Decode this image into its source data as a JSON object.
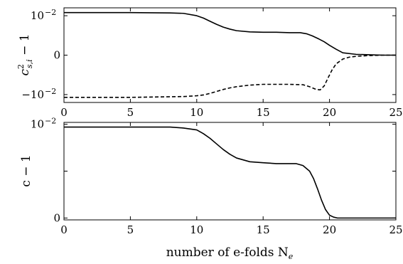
{
  "chart_data": [
    {
      "type": "line",
      "ylabel_parts": {
        "base": "c",
        "sup": "2",
        "sub": "s,i",
        "rest": " − 1"
      },
      "xlim": [
        0,
        25
      ],
      "ylim": [
        -0.012,
        0.012
      ],
      "xticks": [
        0,
        5,
        10,
        15,
        20,
        25
      ],
      "yticks": [
        {
          "value": 0.01,
          "label": "10",
          "exp": "−2"
        },
        {
          "value": 0,
          "label": "0",
          "exp": ""
        },
        {
          "value": -0.01,
          "label": "−10",
          "exp": "−2"
        }
      ],
      "series": [
        {
          "style": "solid",
          "x": [
            0,
            5,
            8,
            9,
            10,
            10.5,
            11,
            11.5,
            12,
            12.5,
            13,
            14,
            15,
            16,
            17,
            17.8,
            18.3,
            18.7,
            19.2,
            19.6,
            20,
            20.5,
            21,
            22,
            23,
            24,
            25
          ],
          "y": [
            0.0108,
            0.0108,
            0.0107,
            0.0106,
            0.01,
            0.0094,
            0.0086,
            0.0078,
            0.0071,
            0.0066,
            0.0062,
            0.0059,
            0.0058,
            0.0058,
            0.0057,
            0.0057,
            0.0054,
            0.0049,
            0.0041,
            0.0034,
            0.0025,
            0.0015,
            0.0006,
            0.0002,
            0.0001,
            0,
            0
          ]
        },
        {
          "style": "dashed",
          "x": [
            0,
            5,
            9,
            10,
            10.5,
            11,
            11.5,
            12,
            12.5,
            13,
            14,
            15,
            16,
            17,
            18,
            18.5,
            19,
            19.3,
            19.6,
            19.9,
            20.2,
            20.5,
            21,
            21.5,
            22,
            23,
            24,
            25
          ],
          "y": [
            -0.0107,
            -0.0107,
            -0.0105,
            -0.0103,
            -0.0101,
            -0.0097,
            -0.0092,
            -0.0087,
            -0.0083,
            -0.008,
            -0.0076,
            -0.0074,
            -0.0074,
            -0.0074,
            -0.0075,
            -0.008,
            -0.0087,
            -0.0088,
            -0.0078,
            -0.0057,
            -0.0037,
            -0.0022,
            -0.001,
            -0.0005,
            -0.0003,
            -0.0001,
            0,
            0
          ]
        }
      ]
    },
    {
      "type": "line",
      "ylabel": "c − 1",
      "xlabel": "number of e-folds N",
      "xlabel_sub": "e",
      "xlim": [
        0,
        25
      ],
      "ylim": [
        -0.0002,
        0.0102
      ],
      "xticks": [
        0,
        5,
        10,
        15,
        20,
        25
      ],
      "yticks": [
        {
          "value": 0.01,
          "label": "10",
          "exp": "−2"
        },
        {
          "value": 0.005,
          "label": "",
          "exp": ""
        },
        {
          "value": 0,
          "label": "0",
          "exp": ""
        }
      ],
      "series": [
        {
          "style": "solid",
          "x": [
            0,
            5,
            8,
            9,
            10,
            10.5,
            11,
            11.5,
            12,
            12.5,
            13,
            14,
            15,
            16,
            17,
            17.5,
            18,
            18.5,
            18.8,
            19.1,
            19.4,
            19.7,
            20,
            20.3,
            20.6,
            21,
            22,
            25
          ],
          "y": [
            0.0097,
            0.0097,
            0.0097,
            0.0096,
            0.0094,
            0.009,
            0.0085,
            0.0079,
            0.0073,
            0.0068,
            0.0064,
            0.006,
            0.0059,
            0.0058,
            0.0058,
            0.0058,
            0.0056,
            0.005,
            0.0042,
            0.0031,
            0.0019,
            0.0009,
            0.0003,
            0.0001,
            0,
            0,
            0,
            0
          ]
        }
      ]
    }
  ]
}
